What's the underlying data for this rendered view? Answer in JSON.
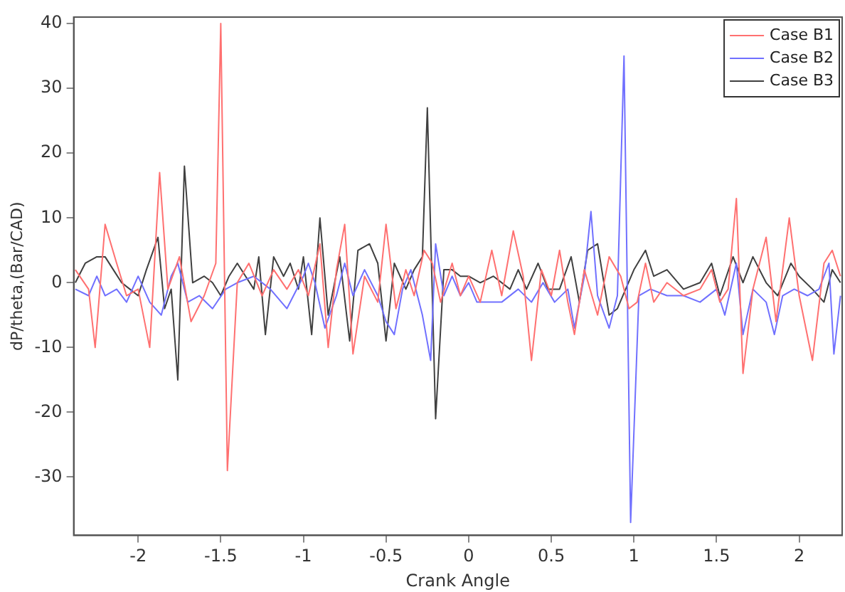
{
  "chart_data": {
    "type": "line",
    "xlabel": "Crank Angle",
    "ylabel": "dP/theta,(Bar/CAD)",
    "legend": "top right",
    "grid": false,
    "marker": "none",
    "line_style": "solid",
    "xlim": [
      -2.39,
      2.26
    ],
    "ylim": [
      -39,
      41
    ],
    "xticks": [
      -2,
      -1.5,
      -1,
      -0.5,
      0,
      0.5,
      1,
      1.5,
      2
    ],
    "yticks": [
      -30,
      -20,
      -10,
      0,
      10,
      20,
      30,
      40
    ],
    "series": [
      {
        "name": "Case B1",
        "color": "#ff7070",
        "x": [
          -2.38,
          -2.3,
          -2.26,
          -2.2,
          -2.13,
          -2.07,
          -2.0,
          -1.93,
          -1.87,
          -1.82,
          -1.75,
          -1.68,
          -1.6,
          -1.53,
          -1.5,
          -1.46,
          -1.4,
          -1.33,
          -1.25,
          -1.18,
          -1.1,
          -1.03,
          -0.97,
          -0.9,
          -0.85,
          -0.8,
          -0.75,
          -0.7,
          -0.63,
          -0.55,
          -0.5,
          -0.44,
          -0.38,
          -0.33,
          -0.27,
          -0.22,
          -0.17,
          -0.1,
          -0.05,
          0.0,
          0.07,
          0.14,
          0.2,
          0.27,
          0.33,
          0.38,
          0.44,
          0.5,
          0.55,
          0.6,
          0.64,
          0.7,
          0.78,
          0.85,
          0.92,
          0.97,
          1.02,
          1.07,
          1.12,
          1.2,
          1.3,
          1.4,
          1.47,
          1.52,
          1.57,
          1.62,
          1.66,
          1.72,
          1.8,
          1.86,
          1.94,
          2.0,
          2.08,
          2.15,
          2.2,
          2.25
        ],
        "values": [
          2,
          -1,
          -10,
          9,
          3,
          -2,
          -1,
          -10,
          17,
          -1,
          4,
          -6,
          -2,
          3,
          40,
          -29,
          0,
          3,
          -2,
          2,
          -1,
          2,
          -2,
          6,
          -10,
          2,
          9,
          -11,
          1,
          -3,
          9,
          -4,
          2,
          -2,
          5,
          3,
          -3,
          3,
          -2,
          1,
          -3,
          5,
          -2,
          8,
          1,
          -12,
          2,
          -2,
          5,
          -3,
          -8,
          2,
          -5,
          4,
          1,
          -4,
          -3,
          3,
          -3,
          0,
          -2,
          -1,
          2,
          -3,
          -1,
          13,
          -14,
          -1,
          7,
          -6,
          10,
          -2,
          -12,
          3,
          5,
          1
        ]
      },
      {
        "name": "Case B2",
        "color": "#7070ff",
        "x": [
          -2.38,
          -2.3,
          -2.25,
          -2.2,
          -2.13,
          -2.07,
          -2.0,
          -1.93,
          -1.86,
          -1.8,
          -1.76,
          -1.7,
          -1.63,
          -1.55,
          -1.47,
          -1.4,
          -1.3,
          -1.2,
          -1.1,
          -1.0,
          -0.97,
          -0.93,
          -0.87,
          -0.8,
          -0.75,
          -0.7,
          -0.63,
          -0.55,
          -0.5,
          -0.45,
          -0.4,
          -0.35,
          -0.28,
          -0.23,
          -0.2,
          -0.15,
          -0.1,
          -0.05,
          0.0,
          0.05,
          0.1,
          0.2,
          0.3,
          0.38,
          0.45,
          0.52,
          0.6,
          0.64,
          0.7,
          0.74,
          0.78,
          0.85,
          0.9,
          0.94,
          0.98,
          1.03,
          1.1,
          1.2,
          1.3,
          1.4,
          1.5,
          1.55,
          1.62,
          1.66,
          1.72,
          1.8,
          1.85,
          1.9,
          1.97,
          2.05,
          2.12,
          2.18,
          2.21,
          2.25
        ],
        "values": [
          -1,
          -2,
          1,
          -2,
          -1,
          -3,
          1,
          -3,
          -5,
          1,
          3,
          -3,
          -2,
          -4,
          -1,
          0,
          1,
          -1,
          -4,
          1,
          3,
          0,
          -7,
          -2,
          3,
          -2,
          2,
          -2,
          -6,
          -8,
          -1,
          2,
          -5,
          -12,
          6,
          -2,
          1,
          -2,
          0,
          -3,
          -3,
          -3,
          -1,
          -3,
          0,
          -3,
          -1,
          -7,
          1,
          11,
          -2,
          -7,
          -2,
          35,
          -37,
          -2,
          -1,
          -2,
          -2,
          -3,
          -1,
          -5,
          3,
          -8,
          -1,
          -3,
          -8,
          -2,
          -1,
          -2,
          -1,
          3,
          -11,
          -2
        ]
      },
      {
        "name": "Case B3",
        "color": "#404040",
        "x": [
          -2.38,
          -2.32,
          -2.25,
          -2.2,
          -2.15,
          -2.1,
          -2.05,
          -2.0,
          -1.95,
          -1.88,
          -1.84,
          -1.8,
          -1.76,
          -1.72,
          -1.67,
          -1.6,
          -1.55,
          -1.5,
          -1.45,
          -1.4,
          -1.35,
          -1.3,
          -1.27,
          -1.23,
          -1.18,
          -1.12,
          -1.08,
          -1.03,
          -1.0,
          -0.95,
          -0.9,
          -0.85,
          -0.78,
          -0.72,
          -0.67,
          -0.6,
          -0.55,
          -0.5,
          -0.45,
          -0.38,
          -0.33,
          -0.28,
          -0.25,
          -0.2,
          -0.15,
          -0.1,
          -0.05,
          0.0,
          0.07,
          0.15,
          0.25,
          0.3,
          0.35,
          0.42,
          0.48,
          0.55,
          0.62,
          0.67,
          0.72,
          0.78,
          0.85,
          0.9,
          0.95,
          1.0,
          1.07,
          1.12,
          1.2,
          1.3,
          1.4,
          1.47,
          1.52,
          1.6,
          1.66,
          1.72,
          1.8,
          1.87,
          1.95,
          2.0,
          2.08,
          2.15,
          2.2,
          2.25
        ],
        "values": [
          0,
          3,
          4,
          4,
          2,
          0,
          -1,
          -2,
          2,
          7,
          -4,
          -1,
          -15,
          18,
          0,
          1,
          0,
          -2,
          1,
          3,
          1,
          -1,
          4,
          -8,
          4,
          1,
          3,
          -1,
          4,
          -8,
          10,
          -5,
          4,
          -9,
          5,
          6,
          3,
          -9,
          3,
          -1,
          2,
          4,
          27,
          -21,
          2,
          2,
          1,
          1,
          0,
          1,
          -1,
          2,
          -1,
          3,
          -1,
          -1,
          4,
          -3,
          5,
          6,
          -5,
          -4,
          -1,
          2,
          5,
          1,
          2,
          -1,
          0,
          3,
          -2,
          4,
          0,
          4,
          0,
          -2,
          3,
          1,
          -1,
          -3,
          2,
          0
        ]
      }
    ]
  }
}
